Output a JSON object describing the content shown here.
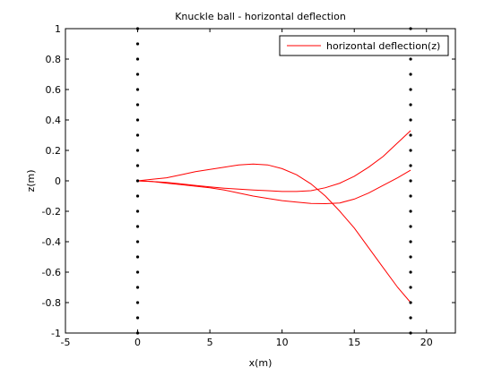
{
  "chart_data": {
    "type": "line",
    "title": "Knuckle ball - horizontal deflection",
    "xlabel": "x(m)",
    "ylabel": "z(m)",
    "xlim": [
      -5,
      22
    ],
    "ylim": [
      -1,
      1
    ],
    "xticks": [
      -5,
      0,
      5,
      10,
      15,
      20
    ],
    "yticks": [
      -1,
      -0.8,
      -0.6,
      -0.4,
      -0.2,
      0,
      0.2,
      0.4,
      0.6,
      0.8,
      1
    ],
    "xtick_labels": [
      "-5",
      "0",
      "5",
      "10",
      "15",
      "20"
    ],
    "ytick_labels": [
      "-1",
      "-0.8",
      "-0.6",
      "-0.4",
      "-0.2",
      "0",
      "0.2",
      "0.4",
      "0.6",
      "0.8",
      "1"
    ],
    "grid": false,
    "legend": {
      "placement": "top-right",
      "entries": [
        "horizontal deflection(z)"
      ]
    },
    "series_color": "#ff0000",
    "marker_color": "#000000",
    "series": [
      {
        "name": "horizontal deflection(z)",
        "x": [
          0,
          1,
          2,
          3,
          4,
          5,
          6,
          7,
          8,
          9,
          10,
          11,
          12,
          13,
          14,
          15,
          16,
          17,
          18,
          18.9
        ],
        "y": [
          0,
          0.01,
          0.02,
          0.04,
          0.06,
          0.075,
          0.09,
          0.105,
          0.11,
          0.105,
          0.08,
          0.04,
          -0.02,
          -0.1,
          -0.2,
          -0.31,
          -0.44,
          -0.57,
          -0.7,
          -0.8
        ]
      },
      {
        "name": "",
        "x": [
          0,
          1,
          2,
          3,
          4,
          5,
          6,
          7,
          8,
          9,
          10,
          11,
          12,
          13,
          14,
          15,
          16,
          17,
          18,
          18.9
        ],
        "y": [
          0,
          -0.005,
          -0.015,
          -0.025,
          -0.035,
          -0.045,
          -0.06,
          -0.08,
          -0.1,
          -0.115,
          -0.13,
          -0.14,
          -0.148,
          -0.15,
          -0.145,
          -0.12,
          -0.08,
          -0.03,
          0.02,
          0.07
        ]
      },
      {
        "name": "",
        "x": [
          0,
          1,
          2,
          3,
          4,
          5,
          6,
          7,
          8,
          9,
          10,
          11,
          12,
          13,
          14,
          15,
          16,
          17,
          18,
          18.9
        ],
        "y": [
          0,
          -0.005,
          -0.01,
          -0.02,
          -0.03,
          -0.04,
          -0.048,
          -0.055,
          -0.06,
          -0.065,
          -0.07,
          -0.07,
          -0.065,
          -0.045,
          -0.015,
          0.03,
          0.09,
          0.16,
          0.25,
          0.33
        ]
      }
    ],
    "markers": [
      {
        "x": 0,
        "y": [
          -1,
          -0.9,
          -0.8,
          -0.7,
          -0.6,
          -0.5,
          -0.4,
          -0.3,
          -0.2,
          -0.1,
          0,
          0.1,
          0.2,
          0.3,
          0.4,
          0.5,
          0.6,
          0.7,
          0.8,
          0.9,
          1
        ]
      },
      {
        "x": 18.9,
        "y": [
          -1,
          -0.9,
          -0.8,
          -0.7,
          -0.6,
          -0.5,
          -0.4,
          -0.3,
          -0.2,
          -0.1,
          0,
          0.1,
          0.2,
          0.3,
          0.4,
          0.5,
          0.6,
          0.7,
          0.8,
          0.9,
          1
        ]
      }
    ]
  }
}
